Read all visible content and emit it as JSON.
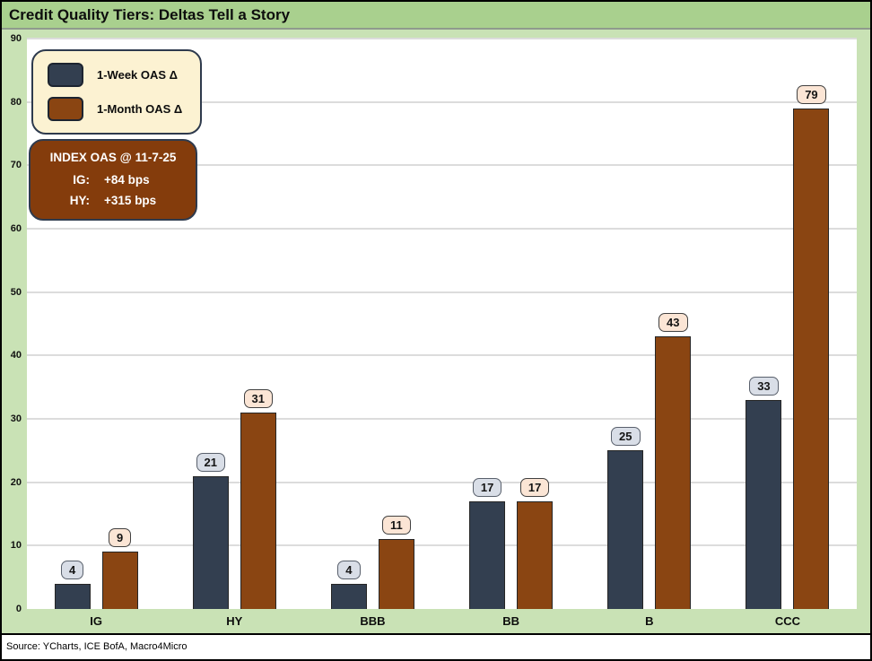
{
  "window": {
    "title": "Credit Quality Tiers: Deltas Tell a Story"
  },
  "legend": {
    "items": [
      {
        "label": "1-Week OAS Δ",
        "color": "#333F50"
      },
      {
        "label": "1-Month OAS Δ",
        "color": "#8A4512"
      }
    ]
  },
  "info_box": {
    "title": "INDEX OAS @ 11-7-25",
    "rows": [
      {
        "label": "IG:",
        "value": "+84 bps"
      },
      {
        "label": "HY:",
        "value": "+315 bps"
      }
    ]
  },
  "footer": {
    "source": "Source: YCharts, ICE BofA, Macro4Micro"
  },
  "chart_data": {
    "type": "bar",
    "title": "Credit Quality Tiers: Deltas Tell a Story",
    "categories": [
      "IG",
      "HY",
      "BBB",
      "BB",
      "B",
      "CCC"
    ],
    "series": [
      {
        "name": "1-Week OAS Δ",
        "values": [
          4,
          21,
          4,
          17,
          25,
          33
        ],
        "color": "#333F50",
        "label_bg": "#D9DEE7",
        "label_border": "#59606c"
      },
      {
        "name": "1-Month OAS Δ",
        "values": [
          9,
          31,
          11,
          17,
          43,
          79
        ],
        "color": "#8A4512",
        "label_bg": "#FBE5D5",
        "label_border": "#414141"
      }
    ],
    "xlabel": "",
    "ylabel": "",
    "ylim": [
      0,
      90
    ],
    "ytick_step": 10,
    "grid": true,
    "legend_position": "top-left",
    "annotations": [
      "INDEX OAS @ 11-7-25",
      "IG: +84 bps",
      "HY: +315 bps"
    ]
  },
  "colors": {
    "title_bar_bg": "#A9D08E",
    "chart_bg": "#C9E2B5",
    "plot_bg": "#FFFFFF",
    "gridline": "#DCDCDC",
    "week_bar": "#333F50",
    "month_bar": "#8A4512",
    "legend_bg": "#FCF2D2",
    "info_bg": "#843C0C",
    "box_border": "#2E3A4D"
  }
}
